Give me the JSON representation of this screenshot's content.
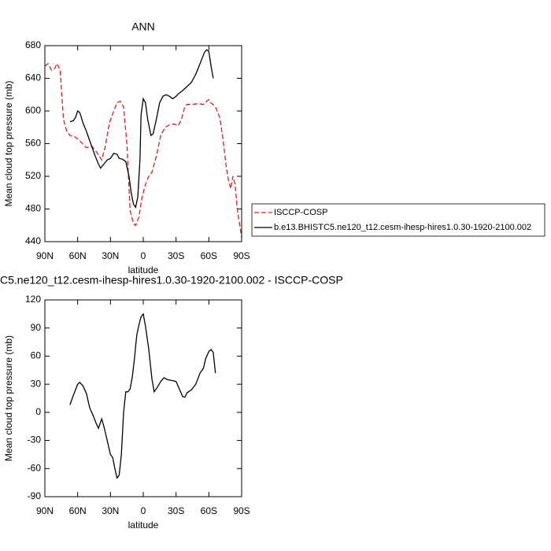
{
  "chart_data": [
    {
      "type": "line",
      "title": "ANN",
      "x_label": "latitude",
      "y_label": "Mean cloud top pressure (mb)",
      "xlim": [
        90,
        -90
      ],
      "xticks": [
        {
          "value": 90,
          "label": "90N"
        },
        {
          "value": 60,
          "label": "60N"
        },
        {
          "value": 30,
          "label": "30N"
        },
        0,
        {
          "value": -30,
          "label": "30S"
        },
        {
          "value": -60,
          "label": "60S"
        },
        {
          "value": -90,
          "label": "90S"
        }
      ],
      "ylim": [
        440,
        680
      ],
      "yticks": [
        440,
        480,
        520,
        560,
        600,
        640,
        680
      ],
      "legend": "outside-right",
      "series": [
        {
          "name": "ISCCP-COSP",
          "color": "#e31a1c",
          "dash": true,
          "x": [
            90,
            87,
            84,
            81,
            79,
            76,
            73,
            70,
            67,
            62,
            57,
            52,
            47,
            42,
            38,
            35,
            31,
            27,
            24,
            21,
            18,
            15,
            12,
            9,
            7,
            4,
            1,
            -2,
            -5,
            -8,
            -12,
            -16,
            -20,
            -24,
            -28,
            -32,
            -35,
            -38,
            -40,
            -45,
            -50,
            -55,
            -58,
            -60,
            -62,
            -66,
            -70,
            -73,
            -76,
            -78,
            -80,
            -82,
            -84,
            -86,
            -88,
            -90
          ],
          "values": [
            655,
            658,
            650,
            652,
            658,
            650,
            590,
            575,
            570,
            568,
            562,
            555,
            557,
            548,
            540,
            555,
            585,
            600,
            610,
            612,
            605,
            560,
            478,
            462,
            460,
            470,
            495,
            510,
            520,
            525,
            545,
            570,
            580,
            583,
            584,
            582,
            590,
            605,
            608,
            608,
            609,
            608,
            612,
            614,
            610,
            605,
            592,
            565,
            530,
            515,
            505,
            520,
            510,
            480,
            462,
            445
          ]
        },
        {
          "name": "b.e13.BHISTC5.ne120_t12.cesm-ihesp-hires1.0.30-1920-2100.002",
          "color": "#000000",
          "dash": false,
          "x": [
            67,
            64,
            62,
            60,
            58,
            55,
            52,
            48,
            44,
            41,
            39,
            36,
            33,
            30,
            27,
            24,
            22,
            19,
            16,
            13,
            11,
            9,
            7,
            5,
            3,
            2,
            0,
            -2,
            -4,
            -7,
            -9,
            -12,
            -15,
            -18,
            -21,
            -24,
            -27,
            -30,
            -33,
            -36,
            -40,
            -44,
            -48,
            -52,
            -56,
            -58,
            -60,
            -62,
            -64
          ],
          "values": [
            587,
            588,
            592,
            600,
            598,
            585,
            575,
            560,
            545,
            535,
            530,
            535,
            540,
            542,
            548,
            547,
            542,
            541,
            538,
            520,
            500,
            486,
            482,
            495,
            540,
            595,
            615,
            610,
            590,
            570,
            572,
            590,
            610,
            618,
            620,
            618,
            615,
            618,
            622,
            625,
            630,
            635,
            645,
            658,
            672,
            675,
            673,
            655,
            640
          ]
        }
      ]
    },
    {
      "type": "line",
      "title": "C5.ne120_t12.cesm-ihesp-hires1.0.30-1920-2100.002 - ISCCP-COSP",
      "x_label": "latitude",
      "y_label": "Mean cloud top pressure (mb)",
      "xlim": [
        90,
        -90
      ],
      "xticks": [
        {
          "value": 90,
          "label": "90N"
        },
        {
          "value": 60,
          "label": "60N"
        },
        {
          "value": 30,
          "label": "30N"
        },
        0,
        {
          "value": -30,
          "label": "30S"
        },
        {
          "value": -60,
          "label": "60S"
        },
        {
          "value": -90,
          "label": "90S"
        }
      ],
      "ylim": [
        -90,
        120
      ],
      "yticks": [
        -90,
        -60,
        -30,
        0,
        30,
        60,
        90,
        120
      ],
      "series": [
        {
          "color": "#000000",
          "dash": false,
          "x": [
            67,
            64,
            60,
            58,
            55,
            52,
            49,
            46,
            43,
            41,
            38,
            36,
            33,
            30,
            28,
            26,
            24,
            22,
            20,
            18,
            16,
            14,
            12,
            10,
            8,
            6,
            4,
            2,
            0,
            -2,
            -5,
            -8,
            -10,
            -13,
            -16,
            -19,
            -22,
            -26,
            -30,
            -33,
            -36,
            -38,
            -40,
            -44,
            -48,
            -52,
            -55,
            -57,
            -60,
            -62,
            -64,
            -66
          ],
          "values": [
            8,
            18,
            30,
            32,
            28,
            20,
            5,
            -3,
            -12,
            -17,
            -7,
            -15,
            -30,
            -45,
            -48,
            -60,
            -70,
            -67,
            -45,
            0,
            22,
            22,
            25,
            38,
            58,
            82,
            93,
            102,
            105,
            92,
            68,
            35,
            22,
            27,
            33,
            37,
            35,
            34,
            33,
            25,
            17,
            16,
            21,
            24,
            30,
            42,
            47,
            57,
            65,
            67,
            64,
            42
          ]
        }
      ]
    }
  ]
}
